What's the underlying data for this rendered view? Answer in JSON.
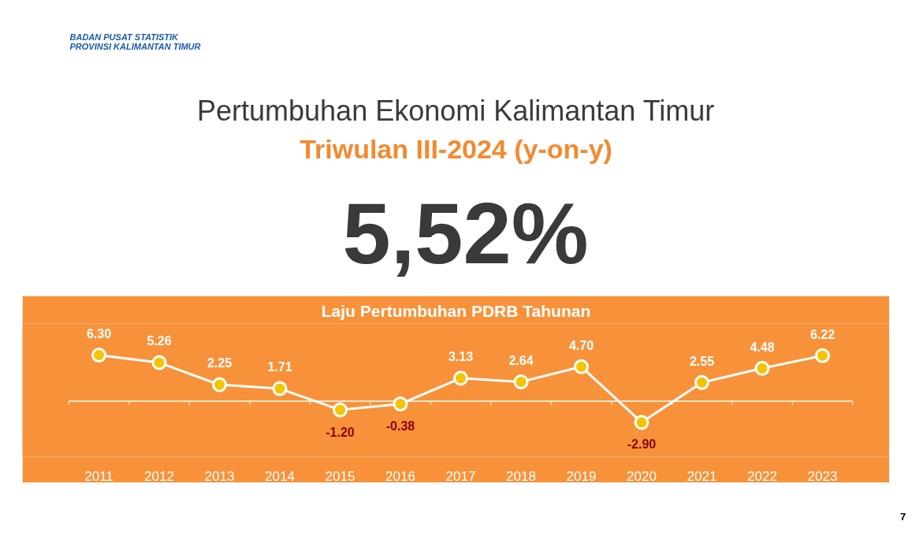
{
  "chart_data": {
    "type": "line",
    "title": "Pertumbuhan Ekonomi Kalimantan Timur",
    "subtitle": "Triwulan III-2024 (y-on-y)",
    "annotations": [
      "BADAN PUSAT STATISTIK",
      "PROVINSI KALIMANTAN TIMUR",
      "5,52%",
      "Laju Pertumbuhan PDRB Tahunan",
      "7"
    ],
    "categories": [
      "2011",
      "2012",
      "2013",
      "2014",
      "2015",
      "2016",
      "2017",
      "2018",
      "2019",
      "2020",
      "2021",
      "2022",
      "2023"
    ],
    "series": [
      {
        "color": "#ffffff",
        "values": [
          6.3,
          5.26,
          2.25,
          1.71,
          -1.2,
          -0.38,
          3.13,
          2.64,
          4.7,
          -2.9,
          2.55,
          4.48,
          6.22
        ],
        "value_labels": [
          "6.30",
          "5.26",
          "2.25",
          "1.71",
          "-1.20",
          "-0.38",
          "3.13",
          "2.64",
          "4.70",
          "-2.90",
          "2.55",
          "4.48",
          "6.22"
        ]
      }
    ],
    "marker": "circle",
    "line_style": "solid",
    "grid": false
  }
}
